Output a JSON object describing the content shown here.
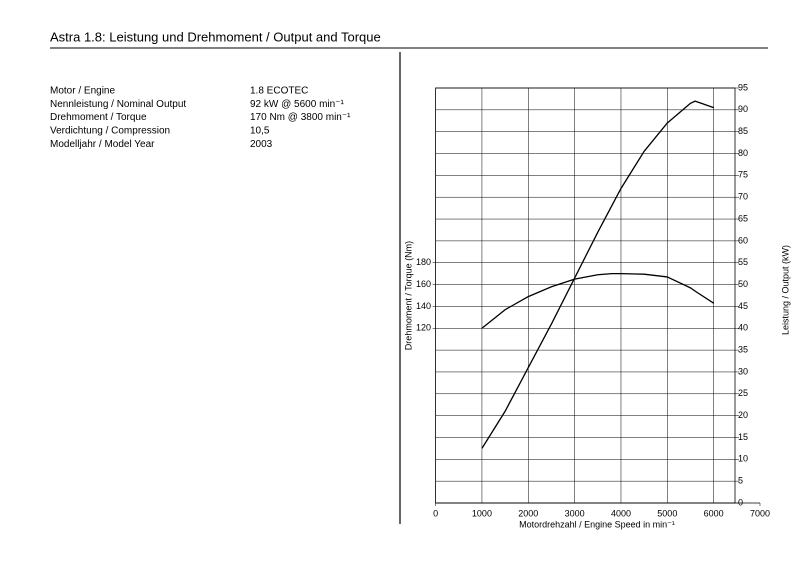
{
  "header": {
    "title": "Astra 1.8: Leistung und Drehmoment / Output and Torque"
  },
  "specs": {
    "rows": [
      [
        "Motor / Engine",
        "1.8 ECOTEC"
      ],
      [
        "Nennleistung / Nominal Output",
        "92 kW   @ 5600 min⁻¹"
      ],
      [
        "Drehmoment / Torque",
        "170 Nm   @ 3800 min⁻¹"
      ],
      [
        "Verdichtung / Compression",
        "10,5"
      ],
      [
        "Modelljahr / Model Year",
        "2003"
      ]
    ]
  },
  "chart_data": {
    "type": "line",
    "xlabel": "Motordrehzahl / Engine Speed in min⁻¹",
    "ylabel": "Drehmoment / Torque (Nm)",
    "y2label": "Leistung / Output (kW)",
    "x": [
      1000,
      1500,
      2000,
      2500,
      3000,
      3500,
      3800,
      4000,
      4500,
      5000,
      5500,
      5600,
      6000
    ],
    "xlim": [
      0,
      7000
    ],
    "xticks": [
      0,
      1000,
      2000,
      3000,
      4000,
      5000,
      6000,
      7000
    ],
    "ylim": [
      -40,
      340
    ],
    "yticks": [
      120,
      140,
      160,
      180
    ],
    "y2lim": [
      0,
      95
    ],
    "y2ticks": [
      0,
      5,
      10,
      15,
      20,
      25,
      30,
      35,
      40,
      45,
      50,
      55,
      60,
      65,
      70,
      75,
      80,
      85,
      90,
      95
    ],
    "grid": true,
    "series": [
      {
        "name": "Drehmoment / Torque",
        "color": "#000000",
        "axis": "y",
        "values": [
          120,
          137,
          149,
          158,
          165,
          169,
          170,
          170,
          169.5,
          167,
          157,
          154,
          143
        ]
      },
      {
        "name": "Leistung / Output",
        "color": "#000000",
        "axis": "y2",
        "values": [
          12.5,
          21,
          31,
          41,
          51.5,
          62,
          68,
          72,
          80.5,
          87,
          91.5,
          92,
          90.5
        ]
      }
    ]
  }
}
